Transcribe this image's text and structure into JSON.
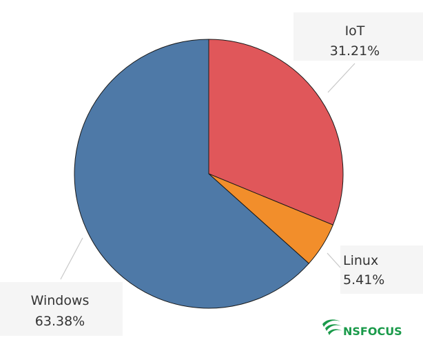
{
  "chart_data": {
    "type": "pie",
    "title": "",
    "slices": [
      {
        "label": "IoT",
        "value": 31.21,
        "value_label": "31.21%",
        "color": "#e0575a"
      },
      {
        "label": "Linux",
        "value": 5.41,
        "value_label": "5.41%",
        "color": "#f28e2b"
      },
      {
        "label": "Windows",
        "value": 63.38,
        "value_label": "63.38%",
        "color": "#4e79a7"
      }
    ],
    "start_angle_deg": 0,
    "direction": "clockwise",
    "legend": "none",
    "data_labels": "outside with leader lines"
  },
  "logo": {
    "text": "NSFOCUS",
    "color": "#1a9a4a"
  }
}
